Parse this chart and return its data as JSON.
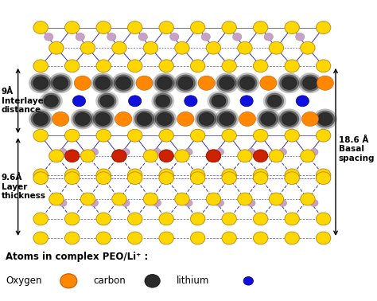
{
  "bg_color": "#ffffff",
  "yellow_color": "#FFD700",
  "yellow_edge": "#B8860B",
  "pink_color": "#C8A0C8",
  "red_color": "#CC2200",
  "orange_color": "#FF8800",
  "orange_edge": "#cc5500",
  "dark_gray": "#2a2a2a",
  "blue_color": "#1010DD",
  "blue_edge": "#000088",
  "line_color": "#3333AA",
  "dashed_color": "#5555AA",
  "label_9A": "9Å\nInterlayer\ndistance",
  "label_96A": "9.6Å\nLayer\nthickness",
  "label_186A": "18.6 Å\nBasal\nspacing",
  "legend_title": "Atoms in complex PEO/Li⁺ :",
  "legend_oxygen": "Oxygen",
  "legend_carbon": "carbon",
  "legend_lithium": "lithium",
  "figsize": [
    4.74,
    3.78
  ],
  "dpi": 100
}
